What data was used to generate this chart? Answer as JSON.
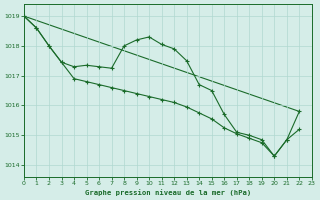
{
  "background_color": "#d5ede8",
  "grid_color": "#b0d8d0",
  "line_color": "#1a6b2a",
  "xlim": [
    0,
    23
  ],
  "ylim": [
    1013.6,
    1019.4
  ],
  "yticks": [
    1014,
    1015,
    1016,
    1017,
    1018,
    1019
  ],
  "xticks": [
    0,
    1,
    2,
    3,
    4,
    5,
    6,
    7,
    8,
    9,
    10,
    11,
    12,
    13,
    14,
    15,
    16,
    17,
    18,
    19,
    20,
    21,
    22,
    23
  ],
  "xlabel": "Graphe pression niveau de la mer (hPa)",
  "line1_x": [
    0,
    1,
    2,
    3,
    4,
    5,
    6,
    7,
    8,
    9,
    10,
    11,
    12,
    13,
    14,
    15,
    16,
    17,
    18,
    19,
    20,
    21,
    22
  ],
  "line1_y": [
    1019.0,
    1018.6,
    1018.0,
    1017.45,
    1017.3,
    1017.35,
    1017.3,
    1017.25,
    1018.0,
    1018.2,
    1018.3,
    1018.05,
    1017.9,
    1017.5,
    1016.7,
    1016.5,
    1015.7,
    1015.1,
    1015.0,
    1014.85,
    1014.3,
    1014.85,
    1015.8
  ],
  "line2_x": [
    0,
    1,
    2,
    3,
    4,
    5,
    6,
    7,
    8,
    9,
    10,
    11,
    12,
    13,
    14,
    15,
    16,
    17,
    18,
    19,
    20,
    21,
    22
  ],
  "line2_y": [
    1019.0,
    1018.6,
    1018.0,
    1017.45,
    1016.9,
    1016.8,
    1016.7,
    1016.6,
    1016.5,
    1016.4,
    1016.3,
    1016.2,
    1016.1,
    1015.95,
    1015.75,
    1015.55,
    1015.25,
    1015.05,
    1014.9,
    1014.75,
    1014.3,
    1014.85,
    1015.2
  ],
  "line3_x": [
    0,
    22
  ],
  "line3_y": [
    1019.0,
    1015.8
  ]
}
